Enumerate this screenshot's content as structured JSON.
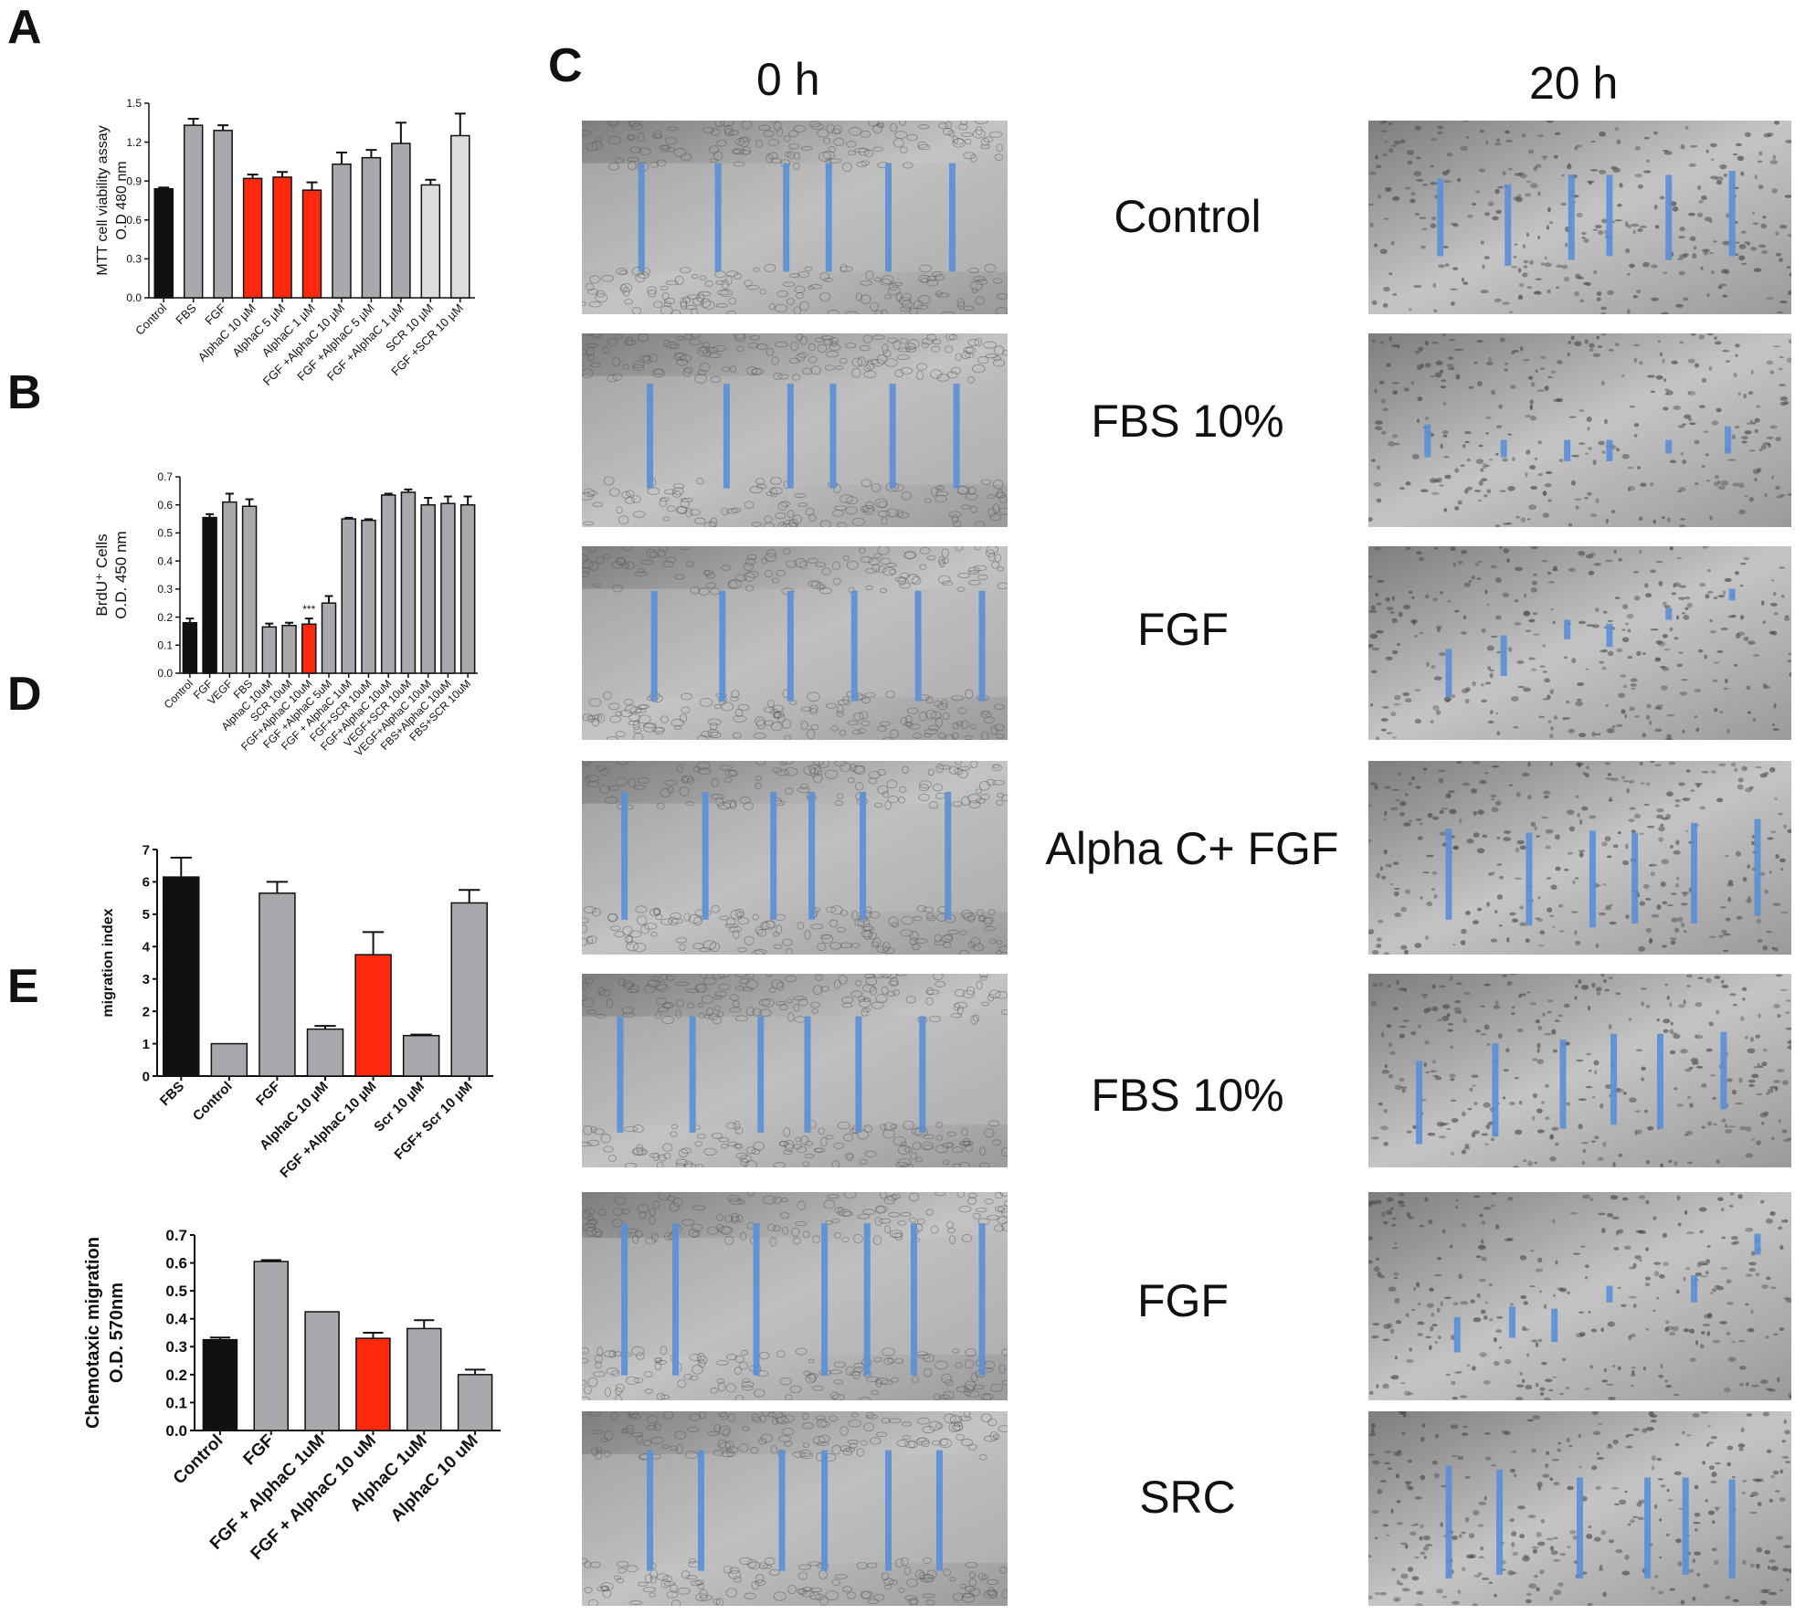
{
  "panels": {
    "a": "A",
    "b": "B",
    "c": "C",
    "d": "D",
    "e": "E"
  },
  "panel_c": {
    "col_0h": "0 h",
    "col_20h": "20 h",
    "conditions": [
      "Control",
      "FBS 10%",
      "FGF",
      "Alpha C+ FGF",
      "FBS 10%",
      "FGF",
      "SRC"
    ]
  },
  "colors": {
    "black_bar": "#111111",
    "grey_bar": "#a9a9ad",
    "red_bar": "#ff2a0e",
    "light_bar": "#dcdcdc",
    "scratch_line": "#5b8fd6"
  },
  "chart_data": [
    {
      "id": "A",
      "type": "bar",
      "ylabel": "MTT cell viability assay O.D 480 nm",
      "ylabel_lines": [
        "MTT cell viability assay",
        "O.D 480 nm"
      ],
      "ylim": [
        0,
        1.5
      ],
      "yticks": [
        "0.0",
        "0.3",
        "0.6",
        "0.9",
        "1.2",
        "1.5"
      ],
      "categories": [
        "Control",
        "FBS",
        "FGF",
        "AlphaC 10 µM",
        "AlphaC 5 µM",
        "AlphaC 1 µM",
        "FGF +AlphaC 10 µM",
        "FGF +AlphaC 5 µM",
        "FGF +AlphaC 1 µM",
        "SCR 10 µM",
        "FGF +SCR 10 µM"
      ],
      "values": [
        0.84,
        1.33,
        1.29,
        0.92,
        0.93,
        0.83,
        1.03,
        1.08,
        1.19,
        0.87,
        1.25
      ],
      "errors": [
        0.01,
        0.05,
        0.04,
        0.03,
        0.04,
        0.06,
        0.09,
        0.06,
        0.16,
        0.04,
        0.17
      ],
      "colors": [
        "black",
        "grey",
        "grey",
        "red",
        "red",
        "red",
        "grey",
        "grey",
        "grey",
        "light",
        "light"
      ]
    },
    {
      "id": "B",
      "type": "bar",
      "ylabel": "BrdU+ Cells O.D. 450 nm",
      "ylabel_lines": [
        "BrdU⁺ Cells",
        "O.D. 450 nm"
      ],
      "ylim": [
        0,
        0.7
      ],
      "yticks": [
        "0.0",
        "0.1",
        "0.2",
        "0.3",
        "0.4",
        "0.5",
        "0.6",
        "0.7"
      ],
      "categories": [
        "Control",
        "FGF",
        "VEGF",
        "FBS",
        "AlphaC 10uM",
        "SCR 10uM",
        "FGF+AlphaC 10uM",
        "FGF +AlphaC 5uM",
        "FGF + AlphaC 1uM",
        "FGF+SCR 10uM",
        "FGF+AlphaC 10uM",
        "VEGF+SCR 10uM",
        "VEGF+AlphaC 10uM",
        "FBS+AlphaC 10uM",
        "FBS+SCR 10uM"
      ],
      "values": [
        0.18,
        0.555,
        0.61,
        0.595,
        0.165,
        0.17,
        0.175,
        0.25,
        0.55,
        0.545,
        0.635,
        0.645,
        0.6,
        0.605,
        0.6
      ],
      "errors": [
        0.015,
        0.012,
        0.03,
        0.025,
        0.012,
        0.01,
        0.02,
        0.025,
        0.004,
        0.004,
        0.005,
        0.01,
        0.025,
        0.025,
        0.03
      ],
      "colors": [
        "black",
        "black",
        "grey",
        "grey",
        "grey",
        "grey",
        "red",
        "grey",
        "grey",
        "grey",
        "grey",
        "grey",
        "grey",
        "grey",
        "grey"
      ],
      "annotation": "***",
      "annotation_index": 6
    },
    {
      "id": "D",
      "type": "bar",
      "ylabel": "migration index",
      "ylabel_lines": [
        "migration index"
      ],
      "ylim": [
        0,
        7
      ],
      "yticks": [
        "0",
        "1",
        "2",
        "3",
        "4",
        "5",
        "6",
        "7"
      ],
      "categories": [
        "FBS",
        "Control",
        "FGF",
        "AlphaC 10 µM",
        "FGF +AlphaC 10 µM",
        "Scr 10 µM",
        "FGF+ Scr 10 µM"
      ],
      "values": [
        6.15,
        1.0,
        5.65,
        1.45,
        3.75,
        1.25,
        5.35
      ],
      "errors": [
        0.6,
        0.0,
        0.35,
        0.1,
        0.7,
        0.03,
        0.4
      ],
      "colors": [
        "black",
        "grey",
        "grey",
        "grey",
        "red",
        "grey",
        "grey"
      ]
    },
    {
      "id": "E",
      "type": "bar",
      "ylabel": "Chemotaxic migration O.D. 570nm",
      "ylabel_lines": [
        "Chemotaxic migration",
        "O.D. 570nm"
      ],
      "ylim": [
        0,
        0.7
      ],
      "yticks": [
        "0.0",
        "0.1",
        "0.2",
        "0.3",
        "0.4",
        "0.5",
        "0.6",
        "0.7"
      ],
      "categories": [
        "Control",
        "FGF",
        "FGF + AlphaC 1uM",
        "FGF + AlphaC 10 uM",
        "AlphaC 1uM",
        "AlphaC 10 uM"
      ],
      "values": [
        0.325,
        0.605,
        0.425,
        0.33,
        0.365,
        0.2
      ],
      "errors": [
        0.008,
        0.005,
        0.0,
        0.02,
        0.03,
        0.018
      ],
      "colors": [
        "black",
        "grey",
        "grey",
        "red",
        "grey",
        "grey"
      ]
    }
  ]
}
